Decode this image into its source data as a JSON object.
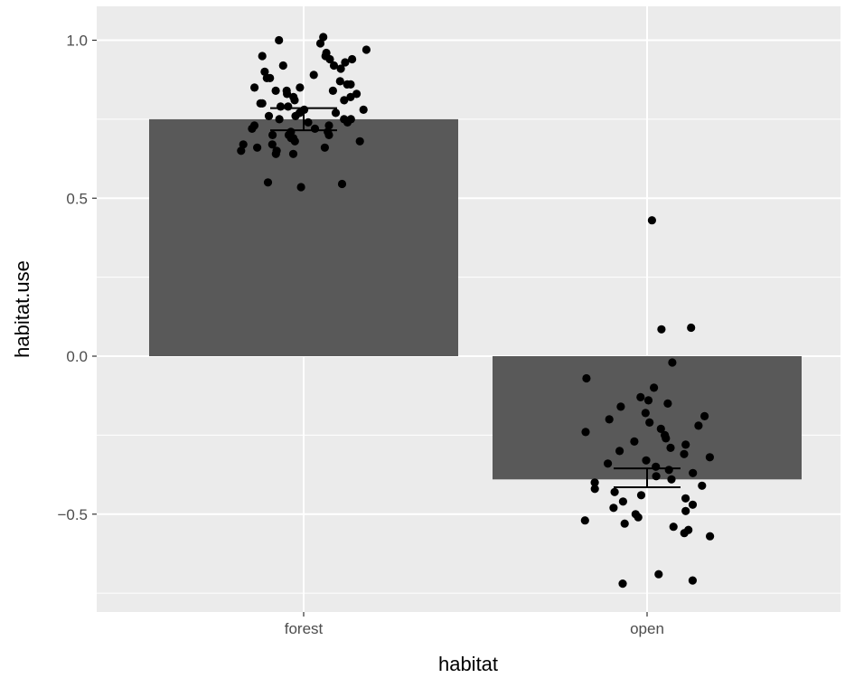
{
  "chart_data": {
    "type": "bar",
    "xlabel": "habitat",
    "ylabel": "habitat.use",
    "categories": [
      "forest",
      "open"
    ],
    "values": [
      0.75,
      -0.39
    ],
    "error_bars": [
      {
        "category": "forest",
        "mean": 0.75,
        "low": 0.715,
        "high": 0.785
      },
      {
        "category": "open",
        "mean": -0.39,
        "low": -0.415,
        "high": -0.355
      }
    ],
    "ylim": [
      -0.82,
      1.1
    ],
    "yticks": [
      -0.5,
      0.0,
      0.5,
      1.0
    ],
    "ytick_labels": [
      "−0.5",
      "0.0",
      "0.5",
      "1.0"
    ],
    "grid": true,
    "colors": {
      "panel": "#ebebeb",
      "grid": "#ffffff",
      "bar": "#595959",
      "point": "#000000",
      "errorbar": "#000000"
    },
    "points": {
      "forest": [
        1.01,
        1.0,
        0.99,
        0.97,
        0.96,
        0.95,
        0.95,
        0.94,
        0.94,
        0.93,
        0.92,
        0.92,
        0.91,
        0.9,
        0.89,
        0.88,
        0.88,
        0.87,
        0.86,
        0.86,
        0.85,
        0.85,
        0.84,
        0.84,
        0.84,
        0.83,
        0.83,
        0.82,
        0.82,
        0.81,
        0.81,
        0.8,
        0.8,
        0.79,
        0.79,
        0.78,
        0.78,
        0.77,
        0.77,
        0.76,
        0.76,
        0.75,
        0.75,
        0.75,
        0.74,
        0.74,
        0.73,
        0.73,
        0.72,
        0.72,
        0.71,
        0.71,
        0.7,
        0.7,
        0.7,
        0.69,
        0.69,
        0.68,
        0.68,
        0.67,
        0.67,
        0.66,
        0.66,
        0.65,
        0.65,
        0.64,
        0.64,
        0.55,
        0.545,
        0.535
      ],
      "open": [
        0.43,
        0.09,
        0.085,
        -0.02,
        -0.07,
        -0.1,
        -0.13,
        -0.14,
        -0.15,
        -0.16,
        -0.18,
        -0.19,
        -0.2,
        -0.21,
        -0.22,
        -0.23,
        -0.24,
        -0.25,
        -0.26,
        -0.27,
        -0.28,
        -0.29,
        -0.3,
        -0.31,
        -0.32,
        -0.33,
        -0.34,
        -0.35,
        -0.36,
        -0.37,
        -0.38,
        -0.39,
        -0.4,
        -0.41,
        -0.42,
        -0.43,
        -0.44,
        -0.45,
        -0.46,
        -0.47,
        -0.48,
        -0.49,
        -0.5,
        -0.51,
        -0.52,
        -0.53,
        -0.54,
        -0.55,
        -0.56,
        -0.57,
        -0.69,
        -0.71,
        -0.72
      ]
    }
  }
}
